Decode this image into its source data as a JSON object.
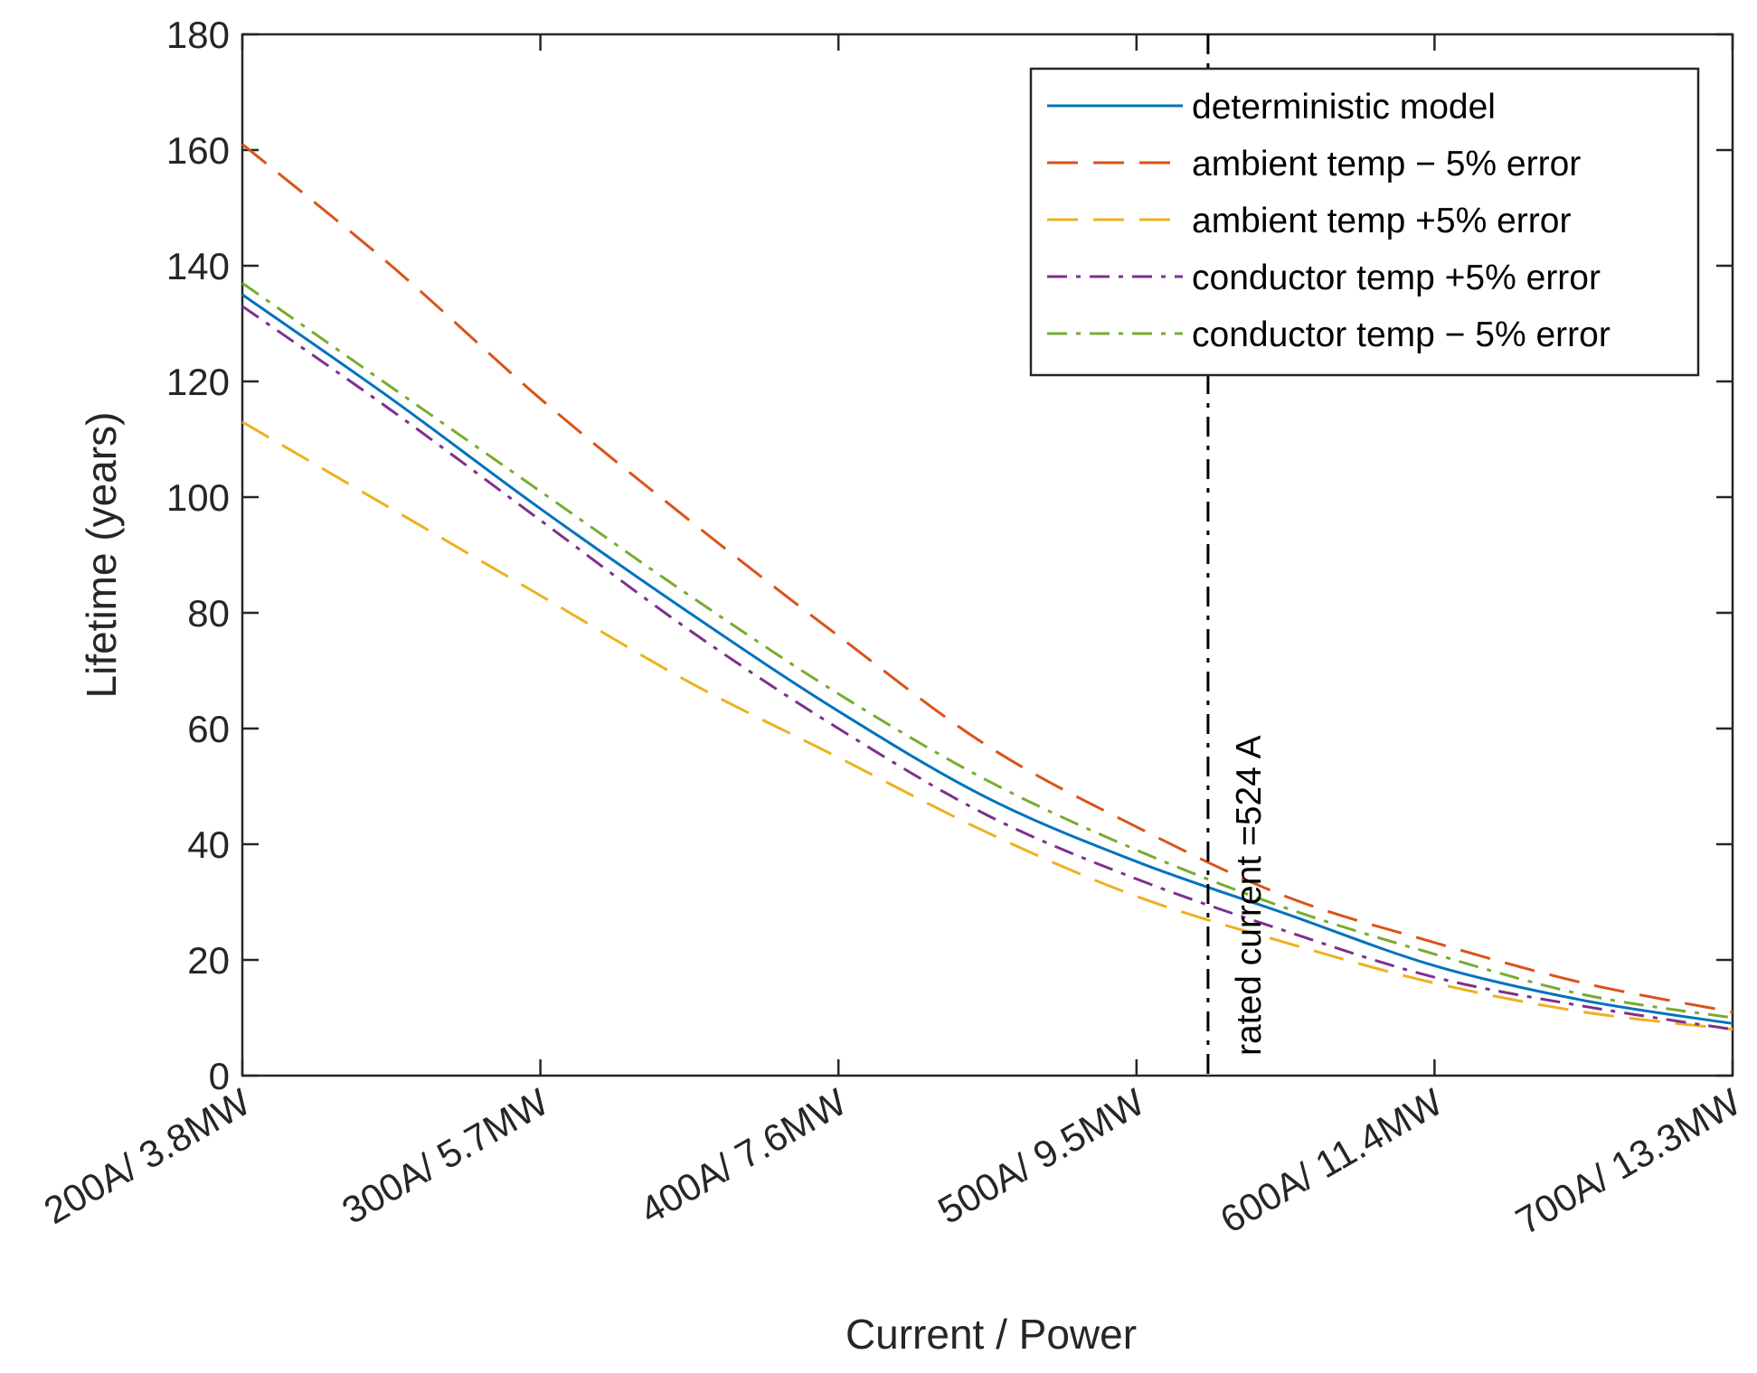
{
  "chart_data": {
    "type": "line",
    "title": "",
    "xlabel": "Current / Power",
    "ylabel": "Lifetime (years)",
    "xlim": [
      200,
      700
    ],
    "ylim": [
      0,
      180
    ],
    "x_ticks": [
      {
        "value": 200,
        "label": "200A/ 3.8MW"
      },
      {
        "value": 300,
        "label": "300A/ 5.7MW"
      },
      {
        "value": 400,
        "label": "400A/ 7.6MW"
      },
      {
        "value": 500,
        "label": "500A/ 9.5MW"
      },
      {
        "value": 600,
        "label": "600A/ 11.4MW"
      },
      {
        "value": 700,
        "label": "700A/ 13.3MW"
      }
    ],
    "y_ticks": [
      0,
      20,
      40,
      60,
      80,
      100,
      120,
      140,
      160,
      180
    ],
    "x": [
      200,
      250,
      300,
      350,
      400,
      450,
      500,
      550,
      600,
      650,
      700
    ],
    "series": [
      {
        "name": "deterministic model",
        "color": "#0072BD",
        "style": "solid",
        "values": [
          135,
          117,
          98,
          80,
          63,
          48,
          37,
          28,
          19,
          13,
          9
        ]
      },
      {
        "name": "ambient temp − 5% error",
        "color": "#D95319",
        "style": "dashed",
        "values": [
          161,
          140,
          117,
          96,
          76,
          57,
          43,
          31,
          23,
          16,
          11
        ]
      },
      {
        "name": "ambient temp +5% error",
        "color": "#EDB120",
        "style": "dashed",
        "values": [
          113,
          98,
          83,
          68,
          55,
          42,
          31,
          23,
          16,
          11,
          8
        ]
      },
      {
        "name": "conductor temp +5% error",
        "color": "#7E2F8E",
        "style": "dashdot",
        "values": [
          133,
          115,
          96,
          77,
          60,
          45,
          34,
          25,
          17,
          12,
          8
        ]
      },
      {
        "name": "conductor temp − 5% error",
        "color": "#77AC30",
        "style": "dashdot",
        "values": [
          137,
          119,
          101,
          83,
          66,
          51,
          39,
          29,
          21,
          14,
          10
        ]
      }
    ],
    "annotations": [
      {
        "type": "vline",
        "x": 524,
        "label": "rated current =524 A",
        "color": "#000000",
        "style": "dashdot"
      }
    ],
    "legend_position": "top-right",
    "grid": false
  }
}
